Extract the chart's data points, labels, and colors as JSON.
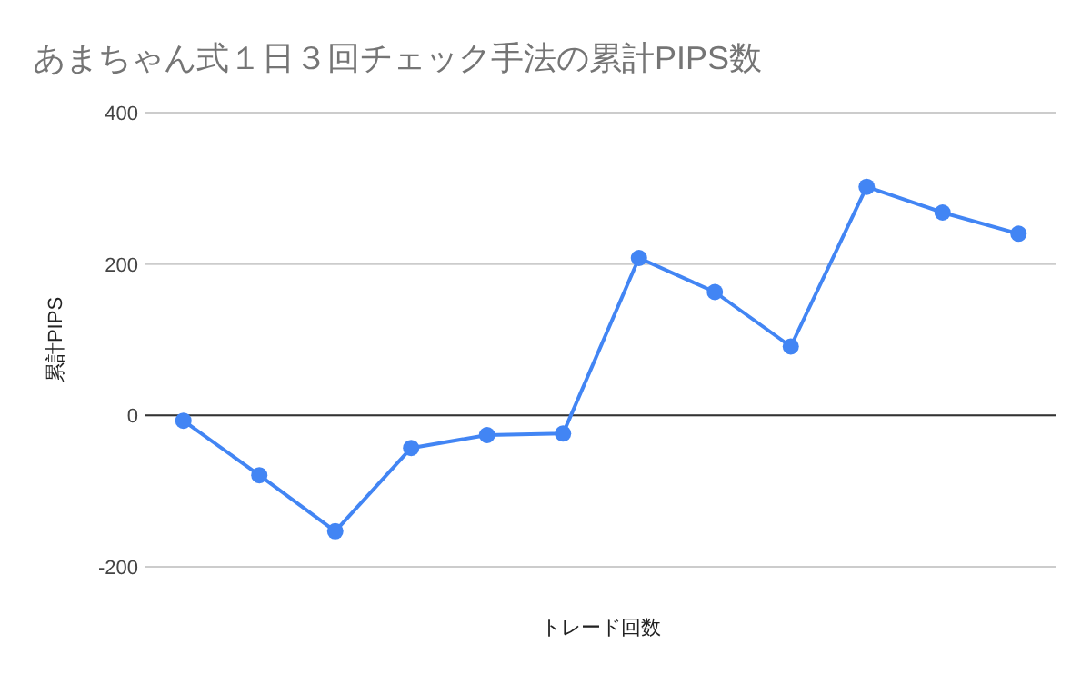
{
  "chart_data": {
    "type": "line",
    "title": "あまちゃん式１日３回チェック手法の累計PIPS数",
    "xlabel": "トレード回数",
    "ylabel": "累計PIPS",
    "categories": [
      null,
      null,
      null,
      null,
      null,
      null,
      null,
      null,
      null,
      null,
      null,
      null
    ],
    "values": [
      -7,
      -79,
      -153,
      -43,
      -26,
      -24,
      208,
      163,
      91,
      302,
      268,
      240
    ],
    "color": "#4285f4",
    "ylim": [
      -200,
      400
    ],
    "yticks": [
      -200,
      0,
      200,
      400
    ],
    "grid": "y",
    "ref_lines": [
      {
        "axis": "y",
        "value": 0,
        "color": "#333333"
      }
    ],
    "marker": "circle",
    "line_style": "solid"
  }
}
